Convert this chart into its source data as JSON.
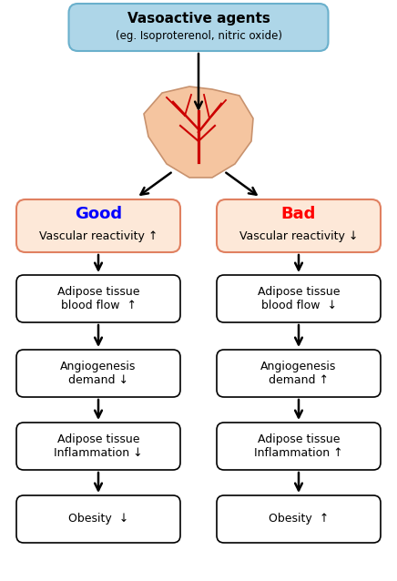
{
  "title_text": "Vasoactive agents",
  "title_sub": "(eg. Isoproterenol, nitric oxide)",
  "title_box_color": "#aed6e8",
  "title_box_edge": "#6ab0cc",
  "good_label": "Good",
  "good_sub": "Vascular reactivity ↑",
  "good_color": "blue",
  "good_box_bg": "#fde8d8",
  "good_box_edge": "#e08060",
  "bad_label": "Bad",
  "bad_sub": "Vascular reactivity ↓",
  "bad_color": "red",
  "bad_box_bg": "#fde8d8",
  "bad_box_edge": "#e08060",
  "left_boxes": [
    "Adipose tissue\nblood flow  ↑",
    "Angiogenesis\ndemand ↓",
    "Adipose tissue\nInflammation ↓",
    "Obesity  ↓"
  ],
  "right_boxes": [
    "Adipose tissue\nblood flow  ↓",
    "Angiogenesis\ndemand ↑",
    "Adipose tissue\nInflammation ↑",
    "Obesity  ↑"
  ],
  "box_bg": "#ffffff",
  "box_edge": "#000000",
  "arrow_color": "#000000",
  "fat_body_color": "#f5c5a0",
  "vein_color": "#cc0000"
}
